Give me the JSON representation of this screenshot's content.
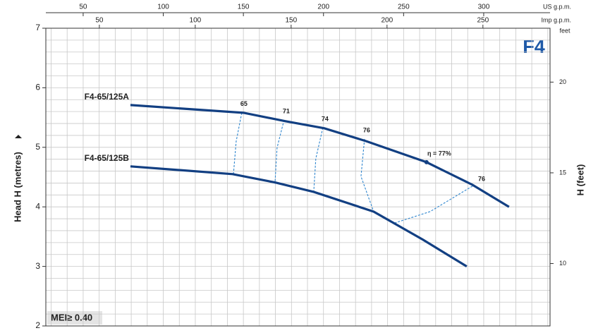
{
  "chart_data": {
    "type": "line",
    "badge": "F4",
    "note": "MEI≥ 0.40",
    "ylabel": "Head H (metres)",
    "y2label": "H (feet)",
    "y2unit": "feet",
    "xlabel": "US g.p.m.",
    "x2label": "Imp g.p.m.",
    "xlim": [
      26.7,
      341.4
    ],
    "xticks": [
      50,
      100,
      150,
      200,
      250,
      300
    ],
    "x2lim": [
      22.1,
      285.0
    ],
    "x2ticks": [
      50,
      100,
      150,
      200,
      250
    ],
    "ylim": [
      2,
      7
    ],
    "yticks": [
      2,
      3,
      4,
      5,
      6,
      7
    ],
    "y2lim": [
      6.56,
      22.97
    ],
    "y2ticks": [
      10,
      15,
      20
    ],
    "grid": true,
    "minor_grid": {
      "x_step": 10,
      "y_step": 0.2
    },
    "series": [
      {
        "name": "F4-65/125A",
        "color": "#123f82",
        "x": [
          79.5,
          150,
          176,
          200.5,
          227,
          264.3,
          293,
          315.8
        ],
        "values": [
          5.71,
          5.58,
          5.44,
          5.32,
          5.1,
          4.75,
          4.37,
          4.0
        ]
      },
      {
        "name": "F4-65/125B",
        "color": "#123f82",
        "x": [
          79.5,
          143.3,
          169.7,
          194,
          231.3,
          262,
          289.4
        ],
        "values": [
          4.68,
          4.55,
          4.41,
          4.25,
          3.92,
          3.45,
          3.0
        ]
      }
    ],
    "efficiency_curves": [
      {
        "name": "65",
        "color": "#2f86cf",
        "x": [
          149.0,
          145.5,
          143.8
        ],
        "values": [
          5.58,
          5.1,
          4.55
        ]
      },
      {
        "name": "71",
        "color": "#2f86cf",
        "x": [
          175.4,
          171.0,
          169.7
        ],
        "values": [
          5.46,
          4.99,
          4.39
        ]
      },
      {
        "name": "74",
        "color": "#2f86cf",
        "x": [
          199.6,
          195.2,
          193.9
        ],
        "values": [
          5.33,
          4.81,
          4.25
        ]
      },
      {
        "name": "76",
        "color": "#2f86cf",
        "x": [
          225.6,
          223.4,
          231.3,
          244.5,
          266.5,
          294.3
        ],
        "values": [
          5.14,
          4.51,
          3.92,
          3.73,
          3.92,
          4.37
        ],
        "end_label": "76"
      }
    ],
    "best_point": {
      "label": "η = 77%",
      "x": 264.3,
      "value": 4.75
    }
  }
}
